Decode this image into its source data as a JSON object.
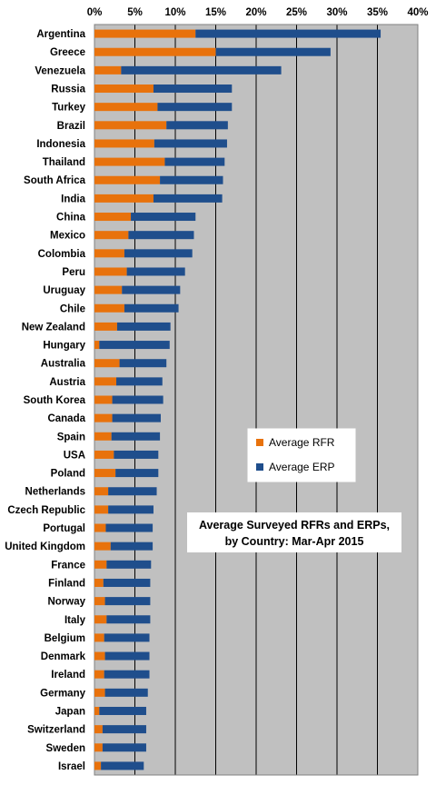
{
  "chart_data": {
    "type": "bar",
    "orientation": "horizontal",
    "stacked": true,
    "title": "Average Surveyed RFRs and ERPs, by Country: Mar-Apr 2015",
    "title_lines": [
      "Average Surveyed RFRs and ERPs,",
      "by Country: Mar-Apr 2015"
    ],
    "xlim": [
      0,
      40
    ],
    "x_ticks": [
      "0%",
      "5%",
      "10%",
      "15%",
      "20%",
      "25%",
      "30%",
      "35%",
      "40%"
    ],
    "grid": true,
    "legend_position": "inside-right",
    "categories": [
      "Argentina",
      "Greece",
      "Venezuela",
      "Russia",
      "Turkey",
      "Brazil",
      "Indonesia",
      "Thailand",
      "South Africa",
      "India",
      "China",
      "Mexico",
      "Colombia",
      "Peru",
      "Uruguay",
      "Chile",
      "New Zealand",
      "Hungary",
      "Australia",
      "Austria",
      "South Korea",
      "Canada",
      "Spain",
      "USA",
      "Poland",
      "Netherlands",
      "Czech Republic",
      "Portugal",
      "United Kingdom",
      "France",
      "Finland",
      "Norway",
      "Italy",
      "Belgium",
      "Denmark",
      "Ireland",
      "Germany",
      "Japan",
      "Switzerland",
      "Sweden",
      "Israel"
    ],
    "series": [
      {
        "name": "Average RFR",
        "color": "#E8720C",
        "values": [
          12.5,
          15.0,
          3.3,
          7.3,
          7.8,
          8.9,
          7.4,
          8.7,
          8.1,
          7.3,
          4.5,
          4.2,
          3.7,
          4.0,
          3.4,
          3.7,
          2.8,
          0.6,
          3.1,
          2.7,
          2.2,
          2.2,
          2.1,
          2.4,
          2.6,
          1.7,
          1.7,
          1.4,
          2.0,
          1.5,
          1.1,
          1.3,
          1.5,
          1.2,
          1.3,
          1.2,
          1.3,
          0.6,
          1.0,
          1.0,
          0.8
        ]
      },
      {
        "name": "Average ERP",
        "color": "#1F4E8C",
        "values": [
          22.9,
          14.2,
          19.8,
          9.7,
          9.2,
          7.6,
          9.0,
          7.4,
          7.8,
          8.5,
          8.0,
          8.1,
          8.4,
          7.2,
          7.2,
          6.7,
          6.6,
          8.7,
          5.8,
          5.7,
          6.3,
          6.0,
          6.0,
          5.5,
          5.3,
          6.0,
          5.6,
          5.8,
          5.2,
          5.5,
          5.8,
          5.6,
          5.4,
          5.6,
          5.5,
          5.6,
          5.3,
          5.8,
          5.4,
          5.4,
          5.3
        ]
      }
    ]
  }
}
